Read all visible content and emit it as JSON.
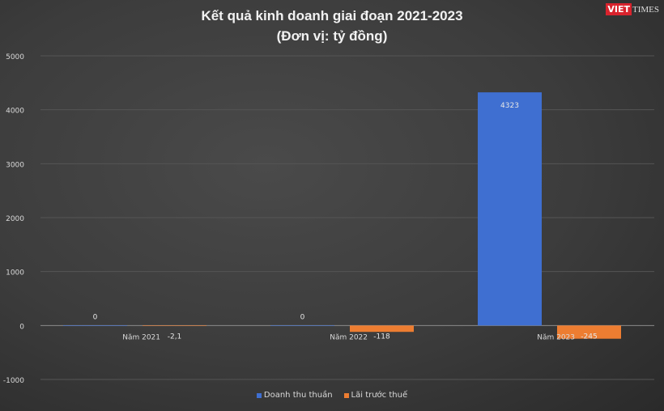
{
  "chart_data": {
    "type": "bar",
    "title": "Kết quả kinh doanh giai đoạn 2021-2023",
    "subtitle": "(Đơn vị: tỷ đồng)",
    "categories": [
      "Năm 2021",
      "Năm 2022",
      "Năm 2023"
    ],
    "series": [
      {
        "name": "Doanh thu thuần",
        "values": [
          0,
          0,
          4323
        ],
        "labels": [
          "0",
          "0",
          "4323"
        ],
        "color": "#3f6fd1"
      },
      {
        "name": "Lãi trước thuế",
        "values": [
          -2.1,
          -118,
          -245
        ],
        "labels": [
          "-2,1",
          "-118",
          "-245"
        ],
        "color": "#ed7d31"
      }
    ],
    "ylim": [
      -1000,
      5000
    ],
    "yticks": [
      "-1000",
      "0",
      "1000",
      "2000",
      "3000",
      "4000",
      "5000"
    ],
    "grid": true,
    "legend": "bottom"
  },
  "logo": {
    "part1": "VIET",
    "part2": "TIMES"
  }
}
